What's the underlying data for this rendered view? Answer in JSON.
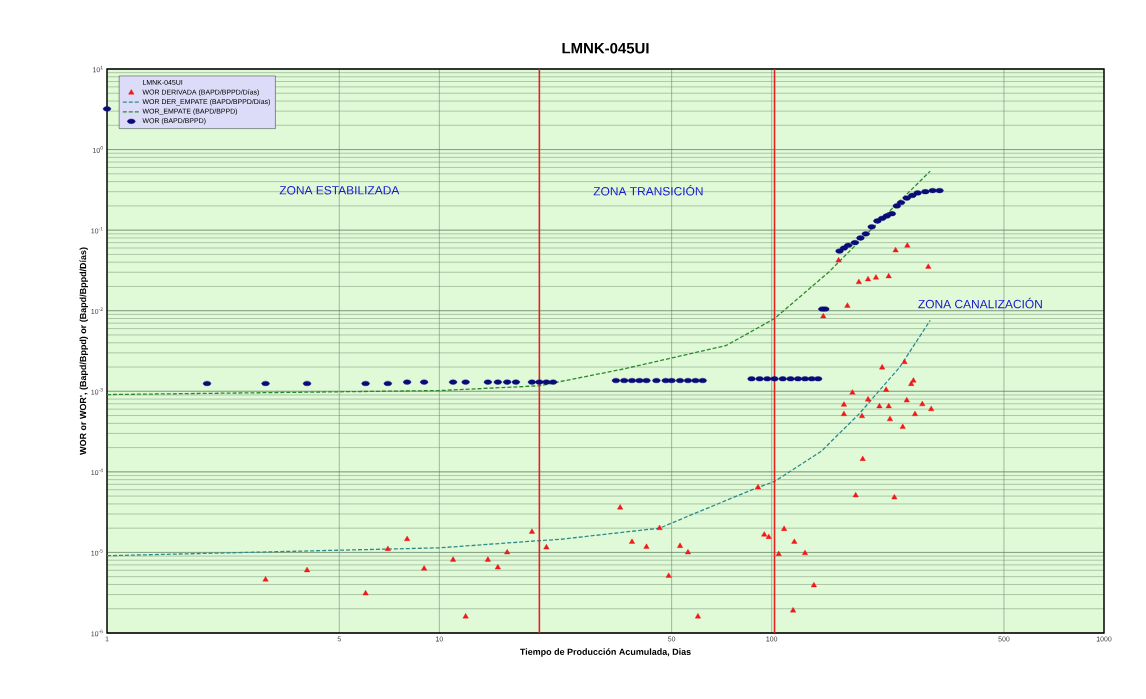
{
  "chart_data": {
    "type": "scatter",
    "title": "LMNK-045UI",
    "xlabel": "Tiempo de Producción Acumulada, Dias",
    "ylabel": "WOR or WOR', (Bapd/Bppd) or (Bapd/Bppd/Días)",
    "legend_title": "LMNK-045UI",
    "log": "xy",
    "grid": true,
    "legend": "top left",
    "xlim": [
      1,
      1000
    ],
    "ylim": [
      1e-06,
      10
    ],
    "xticks": [
      1,
      5,
      10,
      50,
      100,
      500,
      1000
    ],
    "yticks": [
      {
        "value": 1e-06,
        "label": "10$^{-6}$"
      },
      {
        "value": 1e-05,
        "label": "10$^{-5}$"
      },
      {
        "value": 0.0001,
        "label": "10$^{-4}$"
      },
      {
        "value": 0.001,
        "label": "10$^{-3}$"
      },
      {
        "value": 0.01,
        "label": "10$^{-2}$"
      },
      {
        "value": 0.1,
        "label": "10$^{-1}$"
      },
      {
        "value": 1,
        "label": "10$^{0}$"
      },
      {
        "value": 10,
        "label": "10$^{1}$"
      }
    ],
    "ref_lines": [
      {
        "axis": "x",
        "value": 20,
        "color": "#e52222"
      },
      {
        "axis": "x",
        "value": 102,
        "color": "#e52222"
      }
    ],
    "annotations": [
      "ZONA ESTABILIZADA",
      "ZONA TRANSICIÓN",
      "ZONA CANALIZACIÓN"
    ],
    "series": [
      {
        "name": "WOR DERIVADA (BAPD/BPPD/Días)",
        "marker": "triangle",
        "color": "#f01818",
        "x": [
          3,
          4,
          6,
          7,
          8,
          9,
          11,
          12,
          14,
          15,
          16,
          19,
          21,
          35,
          38,
          42,
          46,
          49,
          53,
          56,
          60,
          91,
          95,
          98,
          105,
          109,
          117,
          116,
          126,
          134,
          179,
          188,
          165,
          165,
          175,
          187,
          195,
          211,
          221,
          225,
          227,
          234,
          215,
          251,
          255,
          248,
          270,
          267,
          263,
          284,
          302,
          159,
          169,
          143,
          183,
          195,
          206,
          225,
          236,
          256,
          296
        ],
        "values": [
          4.6e-06,
          6e-06,
          3.1e-06,
          1.1e-05,
          1.46e-05,
          6.3e-06,
          8.1e-06,
          1.6e-06,
          8.1e-06,
          6.5e-06,
          1e-05,
          1.8e-05,
          1.15e-05,
          3.6e-05,
          1.35e-05,
          1.17e-05,
          2e-05,
          5.1e-06,
          1.2e-05,
          1e-05,
          1.6e-06,
          6.4e-05,
          1.66e-05,
          1.55e-05,
          9.5e-06,
          1.95e-05,
          1.35e-05,
          1.9e-06,
          9.8e-06,
          3.9e-06,
          5.1e-05,
          0.000144,
          0.00068,
          0.00052,
          0.00096,
          0.00049,
          0.00079,
          0.00065,
          0.00104,
          0.00065,
          0.00045,
          4.8e-05,
          0.00197,
          0.0023,
          0.00077,
          0.00036,
          0.00052,
          0.00135,
          0.00123,
          0.00069,
          0.0006,
          0.042,
          0.0115,
          0.0085,
          0.0226,
          0.0245,
          0.0257,
          0.0267,
          0.056,
          0.064,
          0.035
        ]
      },
      {
        "name": "WOR DER_EMPATE (BAPD/BPPD/Días)",
        "type": "line",
        "marker": "none",
        "line_style": "dashed",
        "color": "#2e8a8a",
        "x": [
          1,
          10,
          20,
          23,
          46,
          57,
          89,
          102,
          141,
          183,
          243,
          300
        ],
        "values": [
          9.1e-06,
          1.14e-05,
          1.4e-05,
          1.45e-05,
          2e-05,
          2.9e-05,
          6.2e-05,
          7.6e-05,
          0.00018,
          0.00052,
          0.002,
          0.0076
        ]
      },
      {
        "name": "WOR_EMPATE (BAPD/BPPD)",
        "type": "line",
        "marker": "none",
        "line_style": "dashed",
        "color": "#2a8a2a",
        "x": [
          1,
          10,
          20,
          36,
          73,
          102,
          149,
          208,
          300
        ],
        "values": [
          0.00091,
          0.00102,
          0.00117,
          0.0019,
          0.0037,
          0.008,
          0.0305,
          0.122,
          0.54
        ]
      },
      {
        "name": "WOR (BAPD/BPPD)",
        "marker": "circle",
        "color": "#0a0a78",
        "x": [
          1,
          2,
          3,
          4,
          6,
          7,
          8,
          9,
          11,
          12,
          14,
          15,
          16,
          17,
          19,
          20,
          21,
          22,
          34,
          36,
          38,
          40,
          42,
          45,
          48,
          50,
          53,
          56,
          59,
          62,
          87,
          92,
          97,
          102,
          108,
          114,
          120,
          126,
          132,
          138,
          142,
          145,
          160,
          165,
          170,
          178,
          185,
          192,
          200,
          208,
          215,
          222,
          230,
          238,
          245,
          255,
          265,
          275,
          290,
          305,
          320
        ],
        "values": [
          3.2,
          0.00125,
          0.00125,
          0.00125,
          0.00125,
          0.00125,
          0.0013,
          0.0013,
          0.0013,
          0.0013,
          0.0013,
          0.0013,
          0.0013,
          0.0013,
          0.0013,
          0.0013,
          0.0013,
          0.0013,
          0.00136,
          0.00136,
          0.00136,
          0.00136,
          0.00136,
          0.00136,
          0.00136,
          0.00136,
          0.00136,
          0.00136,
          0.00136,
          0.00136,
          0.00143,
          0.00143,
          0.00143,
          0.00143,
          0.00143,
          0.00143,
          0.00143,
          0.00143,
          0.00143,
          0.00143,
          0.0105,
          0.0105,
          0.055,
          0.06,
          0.065,
          0.07,
          0.08,
          0.09,
          0.11,
          0.13,
          0.14,
          0.15,
          0.16,
          0.2,
          0.22,
          0.25,
          0.27,
          0.29,
          0.3,
          0.31,
          0.31
        ]
      }
    ]
  }
}
